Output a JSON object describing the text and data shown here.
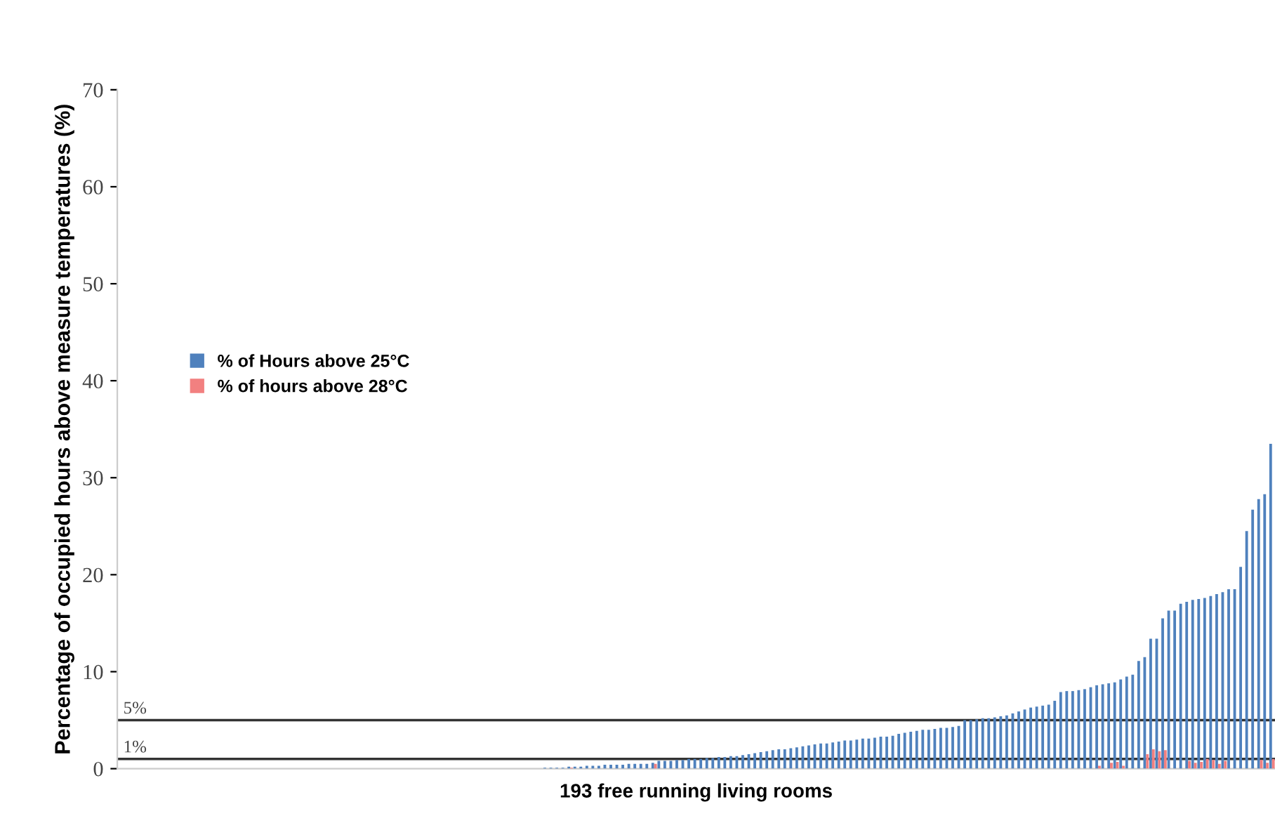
{
  "chart_data": {
    "type": "bar",
    "xlabel": "193 free running living rooms",
    "ylabel": "Percentage of occupied hours above measure temperatures (%)",
    "categories": [
      null,
      null,
      null,
      null,
      null,
      null,
      null,
      null,
      null,
      null,
      null,
      null,
      null,
      null,
      null,
      null,
      null,
      null,
      null,
      null,
      null,
      null,
      null,
      null,
      null,
      null,
      null,
      null,
      null,
      null,
      null,
      null,
      null,
      null,
      null,
      null,
      null,
      null,
      null,
      null,
      null,
      null,
      null,
      null,
      null,
      null,
      null,
      null,
      null,
      null,
      null,
      null,
      null,
      null,
      null,
      null,
      null,
      null,
      null,
      null,
      null,
      null,
      null,
      null,
      null,
      null,
      null,
      null,
      null,
      null,
      null,
      null,
      null,
      null,
      null,
      null,
      null,
      null,
      null,
      null,
      null,
      null,
      null,
      null,
      null,
      null,
      null,
      null,
      null,
      null,
      null,
      null,
      null,
      null,
      null,
      null,
      null,
      null,
      null,
      null,
      null,
      null,
      null,
      null,
      null,
      null,
      null,
      null,
      null,
      null,
      null,
      null,
      null,
      null,
      null,
      null,
      null,
      null,
      null,
      null,
      null,
      null,
      null,
      null,
      null,
      null,
      null,
      null,
      null,
      null,
      null,
      null,
      null,
      null,
      null,
      null,
      null,
      null,
      null,
      null,
      null,
      null,
      null,
      null,
      null,
      null,
      null,
      null,
      null,
      null,
      null,
      null,
      null,
      null,
      null,
      null,
      null,
      null,
      null,
      null,
      null,
      null,
      null,
      null,
      null,
      null,
      null,
      null,
      null,
      null,
      null,
      null,
      null,
      null,
      null,
      null,
      null,
      null,
      null,
      null,
      null,
      null,
      null,
      null,
      null,
      null,
      null,
      null,
      null,
      null,
      null,
      null,
      null
    ],
    "series": [
      {
        "name": "% of Hours above 25°C",
        "color": "#4f81bd",
        "values": [
          0,
          0,
          0,
          0,
          0,
          0,
          0,
          0,
          0,
          0,
          0,
          0,
          0,
          0,
          0,
          0,
          0,
          0,
          0,
          0,
          0,
          0,
          0,
          0,
          0,
          0,
          0,
          0,
          0,
          0,
          0,
          0,
          0,
          0,
          0,
          0,
          0,
          0,
          0,
          0,
          0,
          0,
          0,
          0,
          0,
          0,
          0,
          0,
          0,
          0,
          0,
          0,
          0,
          0,
          0,
          0,
          0,
          0,
          0,
          0,
          0,
          0,
          0,
          0,
          0,
          0,
          0,
          0,
          0,
          0,
          0,
          0.1,
          0.1,
          0.1,
          0.1,
          0.2,
          0.2,
          0.2,
          0.3,
          0.3,
          0.3,
          0.4,
          0.4,
          0.4,
          0.4,
          0.5,
          0.5,
          0.5,
          0.5,
          0.6,
          0.8,
          0.8,
          0.8,
          0.9,
          0.9,
          1.0,
          1.0,
          1.0,
          1.1,
          1.1,
          1.2,
          1.2,
          1.3,
          1.3,
          1.4,
          1.5,
          1.6,
          1.7,
          1.8,
          1.9,
          2.0,
          2.0,
          2.1,
          2.2,
          2.3,
          2.4,
          2.5,
          2.6,
          2.6,
          2.7,
          2.8,
          2.9,
          2.9,
          3.0,
          3.1,
          3.1,
          3.2,
          3.3,
          3.3,
          3.4,
          3.6,
          3.7,
          3.8,
          3.9,
          4.0,
          4.0,
          4.1,
          4.2,
          4.2,
          4.3,
          4.4,
          5.0,
          5.0,
          5.1,
          5.2,
          5.2,
          5.3,
          5.4,
          5.5,
          5.7,
          5.9,
          6.1,
          6.3,
          6.4,
          6.5,
          6.6,
          7.0,
          7.9,
          8.0,
          8.0,
          8.1,
          8.2,
          8.4,
          8.6,
          8.7,
          8.8,
          8.9,
          9.2,
          9.5,
          9.7,
          11.1,
          11.5,
          13.4,
          13.4,
          15.5,
          16.3,
          16.3,
          17.0,
          17.2,
          17.4,
          17.5,
          17.6,
          17.8,
          18.0,
          18.2,
          18.5,
          18.5,
          20.8,
          24.5,
          26.7,
          27.8,
          28.3,
          33.5
        ]
      },
      {
        "name": "% of hours above 28°C",
        "color": "#f28080",
        "values": [
          0,
          0,
          0,
          0,
          0,
          0,
          0,
          0,
          0,
          0,
          0,
          0,
          0,
          0,
          0,
          0,
          0,
          0,
          0,
          0,
          0,
          0,
          0,
          0,
          0,
          0,
          0,
          0,
          0,
          0,
          0,
          0,
          0,
          0,
          0,
          0,
          0,
          0,
          0,
          0,
          0,
          0,
          0,
          0,
          0,
          0,
          0,
          0,
          0,
          0,
          0,
          0,
          0,
          0,
          0,
          0,
          0,
          0,
          0,
          0,
          0,
          0,
          0,
          0,
          0,
          0,
          0,
          0,
          0,
          0,
          0,
          0,
          0,
          0,
          0,
          0.1,
          0,
          0,
          0,
          0,
          0,
          0,
          0,
          0,
          0,
          0,
          0,
          0,
          0,
          0.5,
          0,
          0,
          0,
          0,
          0,
          0,
          0,
          0,
          0,
          0,
          0,
          0,
          0,
          0,
          0,
          0,
          0,
          0,
          0,
          0,
          0,
          0,
          0,
          0,
          0,
          0,
          0,
          0,
          0,
          0,
          0,
          0,
          0,
          0,
          0,
          0,
          0,
          0,
          0,
          0,
          0,
          0,
          0,
          0,
          0,
          0,
          0,
          0,
          0,
          0,
          0,
          0,
          0,
          0,
          0,
          0,
          0,
          0,
          0,
          0,
          0,
          0,
          0,
          0,
          0,
          0,
          0,
          0,
          0,
          0,
          0,
          0,
          0,
          0.3,
          0,
          0.6,
          0.7,
          0.3,
          0,
          0,
          0,
          1.5,
          2.0,
          1.8,
          1.9,
          0,
          0,
          0,
          0.8,
          0.6,
          0.7,
          1.0,
          0.9,
          0.5,
          0.8,
          0,
          0,
          0,
          0,
          0,
          0.9,
          0.6,
          1.0
        ]
      }
    ],
    "ylim": [
      0,
      70
    ],
    "yticks": [
      0,
      10,
      20,
      30,
      40,
      50,
      60,
      70
    ],
    "grid": false,
    "legend": "left",
    "ref_lines": [
      {
        "axis": "y",
        "value": 5,
        "label": "5%",
        "color": "#333333"
      },
      {
        "axis": "y",
        "value": 1,
        "label": "1%",
        "color": "#333333"
      }
    ]
  }
}
